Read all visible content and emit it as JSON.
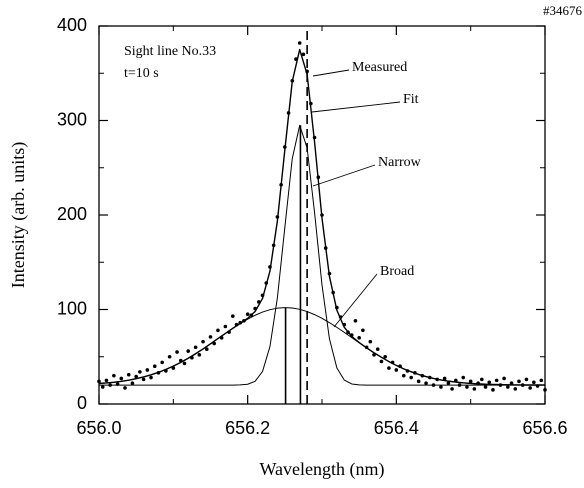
{
  "chart_data": {
    "type": "line",
    "subtitle": "#34676",
    "annotations": [
      "Sight line No.33",
      "t=10 s"
    ],
    "xlabel": "Wavelength (nm)",
    "ylabel": "Intensity (arb. units)",
    "xlim": [
      656.0,
      656.6
    ],
    "ylim": [
      0,
      400
    ],
    "xticks": [
      {
        "value": 656.0,
        "label": "656.0"
      },
      {
        "value": 656.2,
        "label": "656.2"
      },
      {
        "value": 656.4,
        "label": "656.4"
      },
      {
        "value": 656.6,
        "label": "656.6"
      }
    ],
    "xminorticks": [
      656.1,
      656.3,
      656.5
    ],
    "yticks": [
      0,
      100,
      200,
      300,
      400
    ],
    "yminorticks": [
      50,
      150,
      250,
      350
    ],
    "grid": false,
    "series": [
      {
        "name": "Measured",
        "style": "dots",
        "color": "#000000",
        "x": [
          656.0,
          656.005,
          656.01,
          656.015,
          656.02,
          656.025,
          656.03,
          656.035,
          656.04,
          656.045,
          656.05,
          656.055,
          656.06,
          656.065,
          656.07,
          656.075,
          656.08,
          656.085,
          656.09,
          656.095,
          656.1,
          656.105,
          656.11,
          656.115,
          656.12,
          656.125,
          656.13,
          656.135,
          656.14,
          656.145,
          656.15,
          656.155,
          656.16,
          656.165,
          656.17,
          656.175,
          656.18,
          656.185,
          656.19,
          656.195,
          656.2,
          656.205,
          656.21,
          656.215,
          656.22,
          656.225,
          656.23,
          656.235,
          656.24,
          656.245,
          656.25,
          656.255,
          656.26,
          656.265,
          656.27,
          656.275,
          656.28,
          656.285,
          656.29,
          656.295,
          656.3,
          656.305,
          656.31,
          656.315,
          656.32,
          656.325,
          656.33,
          656.335,
          656.34,
          656.345,
          656.35,
          656.355,
          656.36,
          656.365,
          656.37,
          656.375,
          656.38,
          656.385,
          656.39,
          656.395,
          656.4,
          656.405,
          656.41,
          656.415,
          656.42,
          656.425,
          656.43,
          656.435,
          656.44,
          656.445,
          656.45,
          656.455,
          656.46,
          656.465,
          656.47,
          656.475,
          656.48,
          656.485,
          656.49,
          656.495,
          656.5,
          656.505,
          656.51,
          656.515,
          656.52,
          656.525,
          656.53,
          656.535,
          656.54,
          656.545,
          656.55,
          656.555,
          656.56,
          656.565,
          656.57,
          656.575,
          656.58,
          656.585,
          656.59,
          656.595,
          656.6
        ],
        "values": [
          24,
          18,
          25,
          20,
          30,
          21,
          27,
          17,
          31,
          22,
          29,
          34,
          26,
          36,
          28,
          40,
          33,
          44,
          35,
          50,
          38,
          55,
          46,
          43,
          56,
          49,
          60,
          52,
          66,
          58,
          71,
          64,
          78,
          70,
          82,
          76,
          93,
          84,
          86,
          88,
          95,
          94,
          101,
          108,
          115,
          128,
          145,
          168,
          198,
          232,
          272,
          308,
          342,
          365,
          382,
          370,
          352,
          318,
          282,
          240,
          200,
          165,
          138,
          118,
          102,
          92,
          84,
          76,
          73,
          88,
          70,
          78,
          60,
          66,
          52,
          58,
          45,
          50,
          38,
          44,
          36,
          40,
          30,
          35,
          28,
          33,
          24,
          30,
          22,
          28,
          20,
          26,
          18,
          27,
          22,
          16,
          25,
          20,
          28,
          18,
          24,
          16,
          22,
          26,
          18,
          23,
          15,
          25,
          20,
          27,
          18,
          22,
          16,
          24,
          20,
          26,
          17,
          23,
          19,
          25,
          15
        ]
      },
      {
        "name": "Fit",
        "style": "line",
        "color": "#000000",
        "width": 1.4,
        "x": [
          656.0,
          656.01,
          656.02,
          656.03,
          656.04,
          656.05,
          656.06,
          656.07,
          656.08,
          656.09,
          656.1,
          656.11,
          656.12,
          656.13,
          656.14,
          656.15,
          656.16,
          656.17,
          656.18,
          656.19,
          656.2,
          656.21,
          656.22,
          656.23,
          656.24,
          656.25,
          656.26,
          656.27,
          656.28,
          656.29,
          656.3,
          656.31,
          656.32,
          656.33,
          656.34,
          656.35,
          656.36,
          656.37,
          656.38,
          656.39,
          656.4,
          656.41,
          656.42,
          656.43,
          656.44,
          656.45,
          656.46,
          656.47,
          656.48,
          656.49,
          656.5,
          656.51,
          656.52,
          656.53,
          656.54,
          656.55,
          656.56,
          656.57,
          656.58,
          656.59,
          656.6
        ],
        "values": [
          21.7,
          22.3,
          23.0,
          24.0,
          25.2,
          26.8,
          28.6,
          30.9,
          33.5,
          36.6,
          40.1,
          44.0,
          48.4,
          53.2,
          58.3,
          63.7,
          69.2,
          74.7,
          80.1,
          85.3,
          90.7,
          97.9,
          111.7,
          140.7,
          193.9,
          268.8,
          341.4,
          375.1,
          348.7,
          277.2,
          196.6,
          135.1,
          99.2,
          81.1,
          71.5,
          65.0,
          59.4,
          54.2,
          49.4,
          44.9,
          40.8,
          37.2,
          34.1,
          31.3,
          29.0,
          27.1,
          25.5,
          24.2,
          23.2,
          22.4,
          21.8,
          21.3,
          20.9,
          20.7,
          20.5,
          20.3,
          20.2,
          20.2,
          20.1,
          20.1,
          20.1
        ]
      },
      {
        "name": "Narrow",
        "style": "line",
        "color": "#000000",
        "width": 1,
        "x": [
          656.0,
          656.01,
          656.02,
          656.03,
          656.04,
          656.05,
          656.06,
          656.07,
          656.08,
          656.09,
          656.1,
          656.11,
          656.12,
          656.13,
          656.14,
          656.15,
          656.16,
          656.17,
          656.18,
          656.19,
          656.2,
          656.21,
          656.22,
          656.23,
          656.24,
          656.25,
          656.26,
          656.27,
          656.28,
          656.29,
          656.3,
          656.31,
          656.32,
          656.33,
          656.34,
          656.35,
          656.36,
          656.37,
          656.38,
          656.39,
          656.4,
          656.41,
          656.42,
          656.43,
          656.44,
          656.45,
          656.46,
          656.47,
          656.48,
          656.49,
          656.5,
          656.51,
          656.52,
          656.53,
          656.54,
          656.55,
          656.56,
          656.57,
          656.58,
          656.59,
          656.6
        ],
        "values": [
          20,
          20,
          20,
          20,
          20,
          20,
          20,
          20,
          20,
          20,
          20,
          20,
          20,
          20,
          20,
          20,
          20,
          20,
          20,
          20.2,
          20.9,
          24.0,
          34.4,
          60.9,
          112.5,
          186.8,
          259.8,
          294.9,
          270.9,
          202.6,
          125.9,
          69.0,
          38.1,
          25.3,
          21.2,
          20.2,
          20,
          20,
          20,
          20,
          20,
          20,
          20,
          20,
          20,
          20,
          20,
          20,
          20,
          20,
          20,
          20,
          20,
          20,
          20,
          20,
          20,
          20,
          20,
          20,
          20
        ]
      },
      {
        "name": "Broad",
        "style": "line",
        "color": "#000000",
        "width": 1,
        "x": [
          656.0,
          656.01,
          656.02,
          656.03,
          656.04,
          656.05,
          656.06,
          656.07,
          656.08,
          656.09,
          656.1,
          656.11,
          656.12,
          656.13,
          656.14,
          656.15,
          656.16,
          656.17,
          656.18,
          656.19,
          656.2,
          656.21,
          656.22,
          656.23,
          656.24,
          656.25,
          656.26,
          656.27,
          656.28,
          656.29,
          656.3,
          656.31,
          656.32,
          656.33,
          656.34,
          656.35,
          656.36,
          656.37,
          656.38,
          656.39,
          656.4,
          656.41,
          656.42,
          656.43,
          656.44,
          656.45,
          656.46,
          656.47,
          656.48,
          656.49,
          656.5,
          656.51,
          656.52,
          656.53,
          656.54,
          656.55,
          656.56,
          656.57,
          656.58,
          656.59,
          656.6
        ],
        "values": [
          21.7,
          22.3,
          23.0,
          24.0,
          25.2,
          26.8,
          28.6,
          30.9,
          33.5,
          36.6,
          40.1,
          44.0,
          48.4,
          53.2,
          58.3,
          63.7,
          69.2,
          74.7,
          80.1,
          85.1,
          89.8,
          93.9,
          97.3,
          99.8,
          101.4,
          102.0,
          101.6,
          100.2,
          97.8,
          94.6,
          90.7,
          86.1,
          81.1,
          75.8,
          70.3,
          64.8,
          59.4,
          54.2,
          49.4,
          44.9,
          40.8,
          37.2,
          34.1,
          31.3,
          29.0,
          27.1,
          25.5,
          24.2,
          23.2,
          22.4,
          21.8,
          21.3,
          20.9,
          20.7,
          20.5,
          20.3,
          20.2,
          20.2,
          20.1,
          20.1,
          20.1
        ]
      }
    ],
    "vlines": [
      {
        "x": 656.251,
        "ymax": 102,
        "style": "solid"
      },
      {
        "x": 656.271,
        "ymax": 295,
        "style": "solid"
      },
      {
        "x": 656.28,
        "ymax": 400,
        "style": "dashed"
      }
    ]
  }
}
